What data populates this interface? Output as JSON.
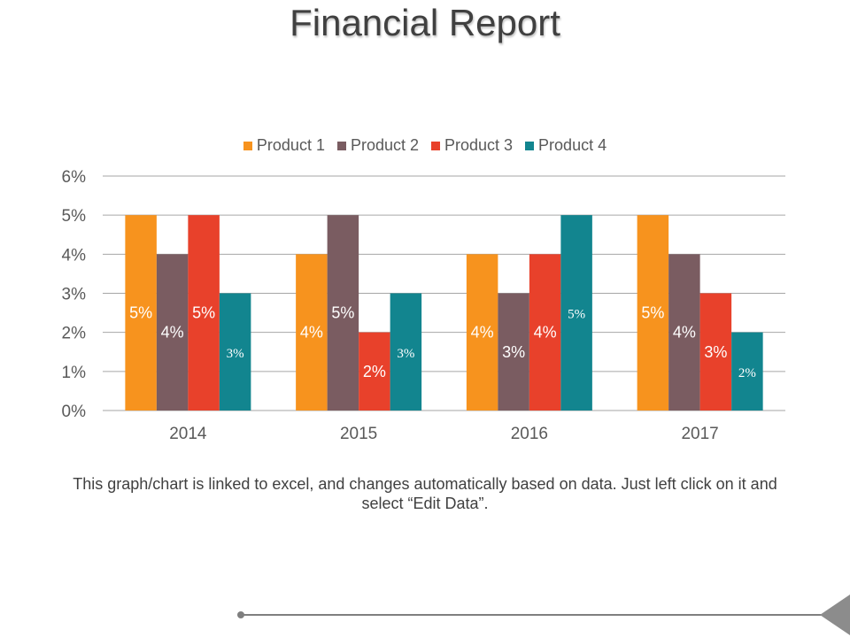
{
  "header": {
    "title": "Financial Report"
  },
  "caption": "This graph/chart is linked to excel, and changes automatically based on data. Just left click on it and select “Edit Data”.",
  "colors": {
    "product1": "#f7931e",
    "product2": "#7a5c61",
    "product3": "#e8412b",
    "product4": "#12858f",
    "grid": "#a6a6a6",
    "axis_text": "#595959",
    "footer_line": "#7f7f7f"
  },
  "chart_data": {
    "type": "bar",
    "title": "",
    "xlabel": "",
    "ylabel": "",
    "categories": [
      "2014",
      "2015",
      "2016",
      "2017"
    ],
    "series": [
      {
        "name": "Product 1",
        "values": [
          5,
          4,
          4,
          5
        ],
        "labels": [
          "5%",
          "4%",
          "4%",
          "5%"
        ]
      },
      {
        "name": "Product 2",
        "values": [
          4,
          5,
          3,
          4
        ],
        "labels": [
          "4%",
          "5%",
          "3%",
          "4%"
        ]
      },
      {
        "name": "Product 3",
        "values": [
          5,
          2,
          4,
          3
        ],
        "labels": [
          "5%",
          "2%",
          "4%",
          "3%"
        ]
      },
      {
        "name": "Product 4",
        "values": [
          3,
          3,
          5,
          2
        ],
        "labels": [
          "3%",
          "3%",
          "5%",
          "2%"
        ]
      }
    ],
    "ylim": [
      0,
      6
    ],
    "yticks": [
      "0%",
      "1%",
      "2%",
      "3%",
      "4%",
      "5%",
      "6%"
    ],
    "grid": true,
    "legend_position": "top"
  }
}
